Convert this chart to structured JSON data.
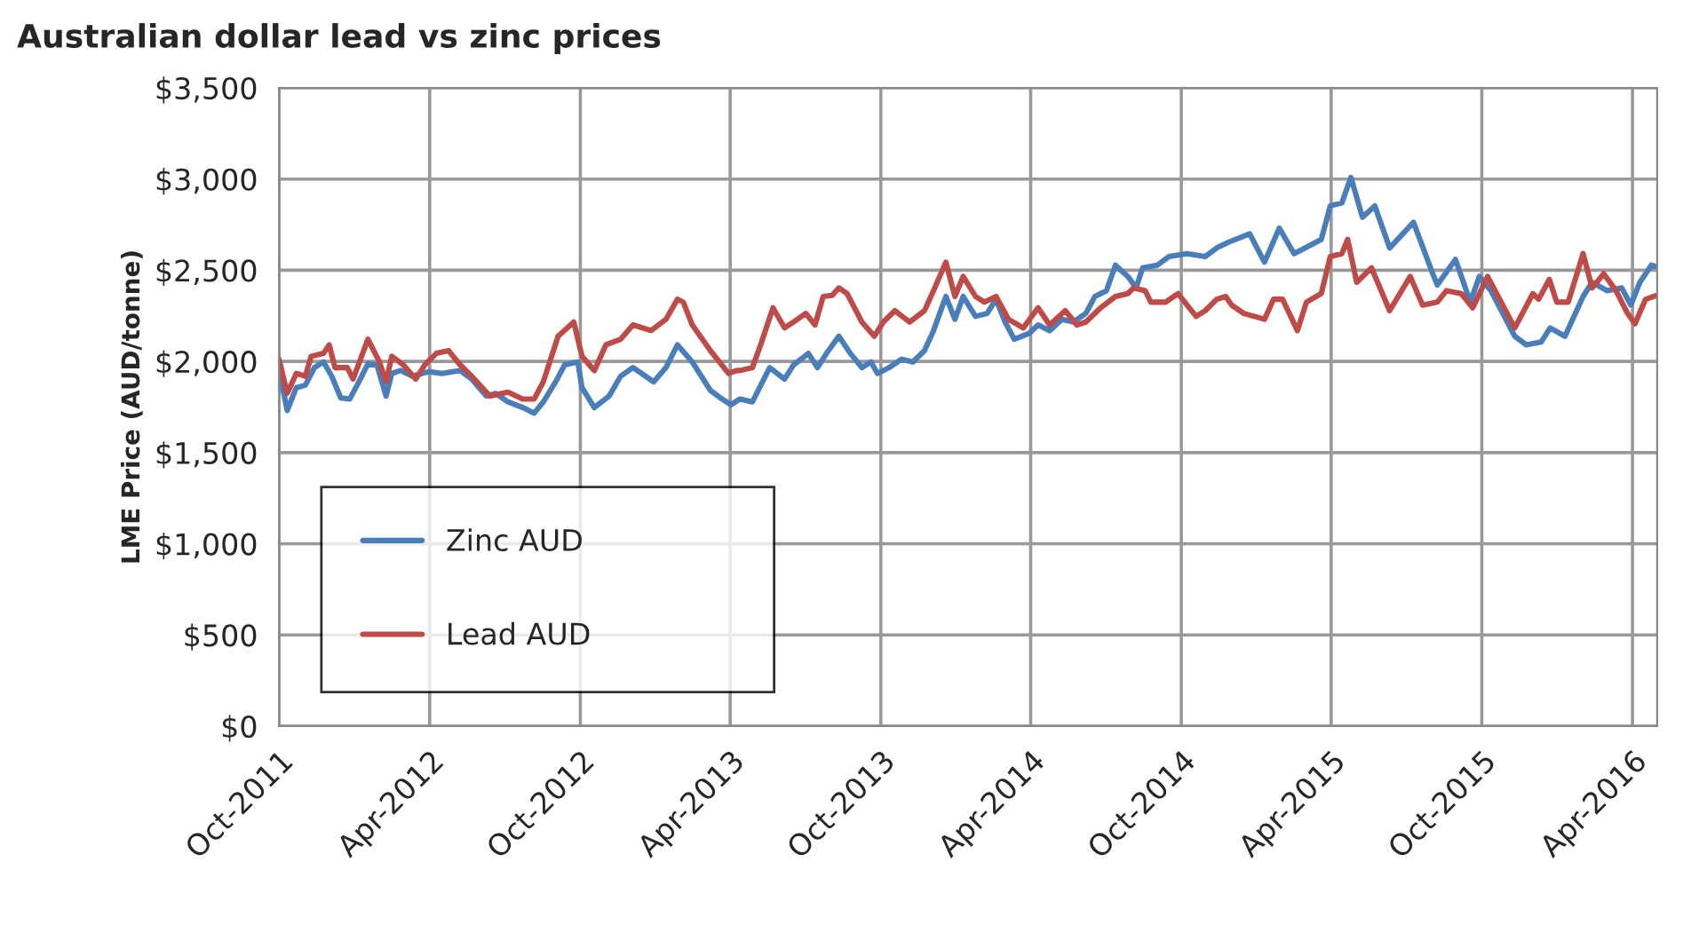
{
  "chart_data": {
    "type": "line",
    "title": "Australian dollar lead vs zinc prices",
    "ylabel": "LME Price (AUD/tonne)",
    "xlim": [
      "2011-10-01",
      "2016-05-01"
    ],
    "xticks": [
      {
        "value": "2011-10-01",
        "label": "Oct-2011"
      },
      {
        "value": "2012-04-01",
        "label": "Apr-2012"
      },
      {
        "value": "2012-10-01",
        "label": "Oct-2012"
      },
      {
        "value": "2013-04-01",
        "label": "Apr-2013"
      },
      {
        "value": "2013-10-01",
        "label": "Oct-2013"
      },
      {
        "value": "2014-04-01",
        "label": "Apr-2014"
      },
      {
        "value": "2014-10-01",
        "label": "Oct-2014"
      },
      {
        "value": "2015-04-01",
        "label": "Apr-2015"
      },
      {
        "value": "2015-10-01",
        "label": "Oct-2015"
      },
      {
        "value": "2016-04-01",
        "label": "Apr-2016"
      }
    ],
    "ylim": [
      0,
      3500
    ],
    "yticks": [
      {
        "value": 0,
        "label": "$0"
      },
      {
        "value": 500,
        "label": "$500"
      },
      {
        "value": 1000,
        "label": "$1,000"
      },
      {
        "value": 1500,
        "label": "$1,500"
      },
      {
        "value": 2000,
        "label": "$2,000"
      },
      {
        "value": 2500,
        "label": "$2,500"
      },
      {
        "value": 3000,
        "label": "$3,000"
      },
      {
        "value": 3500,
        "label": "$3,500"
      }
    ],
    "grid": true,
    "legend": "bottom left",
    "marker": "none",
    "line_style": "solid",
    "series": [
      {
        "name": "Zinc AUD",
        "color": "#4a7ebb",
        "x": [
          "2011-10-01",
          "2011-10-11",
          "2011-10-22",
          "2011-11-02",
          "2011-11-13",
          "2011-11-24",
          "2011-12-04",
          "2011-12-15",
          "2011-12-26",
          "2012-01-06",
          "2012-01-17",
          "2012-01-28",
          "2012-02-08",
          "2012-02-15",
          "2012-02-26",
          "2012-03-11",
          "2012-03-31",
          "2012-04-16",
          "2012-05-08",
          "2012-05-22",
          "2012-06-09",
          "2012-06-20",
          "2012-07-05",
          "2012-07-23",
          "2012-08-06",
          "2012-08-17",
          "2012-09-01",
          "2012-09-12",
          "2012-09-28",
          "2012-10-03",
          "2012-10-18",
          "2012-11-05",
          "2012-11-19",
          "2012-12-04",
          "2012-12-29",
          "2013-01-13",
          "2013-01-27",
          "2013-02-14",
          "2013-03-08",
          "2013-03-22",
          "2013-04-02",
          "2013-04-13",
          "2013-04-28",
          "2013-05-19",
          "2013-06-06",
          "2013-06-17",
          "2013-07-05",
          "2013-07-16",
          "2013-07-27",
          "2013-08-11",
          "2013-08-25",
          "2013-09-08",
          "2013-09-19",
          "2013-09-27",
          "2013-10-11",
          "2013-10-26",
          "2013-11-09",
          "2013-11-23",
          "2013-12-04",
          "2013-12-19",
          "2013-12-30",
          "2014-01-09",
          "2014-01-24",
          "2014-02-07",
          "2014-02-18",
          "2014-03-01",
          "2014-03-12",
          "2014-03-30",
          "2014-04-10",
          "2014-04-24",
          "2014-05-09",
          "2014-05-23",
          "2014-06-07",
          "2014-06-18",
          "2014-07-02",
          "2014-07-13",
          "2014-07-28",
          "2014-08-07",
          "2014-08-15",
          "2014-09-02",
          "2014-09-16",
          "2014-10-08",
          "2014-10-30",
          "2014-11-13",
          "2014-11-27",
          "2014-12-23",
          "2015-01-10",
          "2015-01-28",
          "2015-02-15",
          "2015-03-20",
          "2015-03-31",
          "2015-04-14",
          "2015-04-25",
          "2015-05-09",
          "2015-05-24",
          "2015-06-11",
          "2015-07-10",
          "2015-08-01",
          "2015-08-08",
          "2015-08-30",
          "2015-09-17",
          "2015-09-28",
          "2015-10-12",
          "2015-11-10",
          "2015-11-24",
          "2015-12-12",
          "2015-12-23",
          "2016-01-10",
          "2016-02-01",
          "2016-02-12",
          "2016-03-01",
          "2016-03-19",
          "2016-03-30",
          "2016-04-10",
          "2016-04-24",
          "2016-04-30"
        ],
        "values": [
          1950,
          1731,
          1856,
          1870,
          1966,
          1997,
          1919,
          1800,
          1794,
          1888,
          1987,
          1981,
          1810,
          1934,
          1950,
          1919,
          1944,
          1934,
          1950,
          1903,
          1810,
          1825,
          1778,
          1747,
          1716,
          1778,
          1888,
          1981,
          1997,
          1856,
          1747,
          1810,
          1919,
          1966,
          1888,
          1966,
          2091,
          1997,
          1841,
          1794,
          1763,
          1794,
          1778,
          1966,
          1903,
          1981,
          2044,
          1966,
          2044,
          2138,
          2044,
          1966,
          1997,
          1934,
          1966,
          2012,
          1997,
          2059,
          2169,
          2356,
          2231,
          2356,
          2247,
          2263,
          2341,
          2216,
          2122,
          2153,
          2200,
          2169,
          2231,
          2216,
          2263,
          2356,
          2388,
          2528,
          2466,
          2403,
          2513,
          2528,
          2575,
          2591,
          2575,
          2622,
          2653,
          2700,
          2544,
          2731,
          2591,
          2669,
          2853,
          2869,
          3009,
          2791,
          2853,
          2622,
          2763,
          2497,
          2419,
          2559,
          2325,
          2466,
          2388,
          2138,
          2091,
          2106,
          2184,
          2138,
          2356,
          2434,
          2388,
          2403,
          2309,
          2434,
          2528,
          2519
        ]
      },
      {
        "name": "Lead AUD",
        "color": "#be4b48",
        "x": [
          "2011-10-01",
          "2011-10-11",
          "2011-10-22",
          "2011-11-02",
          "2011-11-09",
          "2011-11-24",
          "2011-12-01",
          "2011-12-08",
          "2011-12-23",
          "2011-12-30",
          "2012-01-17",
          "2012-01-31",
          "2012-02-08",
          "2012-02-15",
          "2012-02-29",
          "2012-03-15",
          "2012-03-26",
          "2012-04-09",
          "2012-04-24",
          "2012-05-08",
          "2012-05-22",
          "2012-06-13",
          "2012-07-05",
          "2012-07-23",
          "2012-08-06",
          "2012-08-17",
          "2012-09-04",
          "2012-09-23",
          "2012-10-03",
          "2012-10-18",
          "2012-11-01",
          "2012-11-19",
          "2012-12-04",
          "2012-12-26",
          "2013-01-13",
          "2013-01-27",
          "2013-02-03",
          "2013-02-14",
          "2013-03-08",
          "2013-03-30",
          "2013-04-09",
          "2013-04-13",
          "2013-04-28",
          "2013-05-08",
          "2013-05-23",
          "2013-06-06",
          "2013-06-17",
          "2013-07-02",
          "2013-07-13",
          "2013-07-23",
          "2013-08-03",
          "2013-08-11",
          "2013-08-21",
          "2013-09-08",
          "2013-09-23",
          "2013-10-04",
          "2013-10-18",
          "2013-11-05",
          "2013-11-23",
          "2013-12-04",
          "2013-12-19",
          "2013-12-30",
          "2014-01-09",
          "2014-01-24",
          "2014-02-04",
          "2014-02-18",
          "2014-03-05",
          "2014-03-23",
          "2014-04-10",
          "2014-04-24",
          "2014-05-13",
          "2014-05-27",
          "2014-06-07",
          "2014-06-25",
          "2014-07-13",
          "2014-07-28",
          "2014-08-04",
          "2014-08-18",
          "2014-08-25",
          "2014-09-12",
          "2014-09-27",
          "2014-10-08",
          "2014-10-19",
          "2014-10-30",
          "2014-11-13",
          "2014-11-24",
          "2014-12-01",
          "2014-12-16",
          "2015-01-10",
          "2015-01-21",
          "2015-02-01",
          "2015-02-19",
          "2015-03-02",
          "2015-03-20",
          "2015-03-31",
          "2015-04-14",
          "2015-04-21",
          "2015-05-02",
          "2015-05-20",
          "2015-06-11",
          "2015-07-06",
          "2015-07-21",
          "2015-08-08",
          "2015-08-19",
          "2015-09-06",
          "2015-09-20",
          "2015-10-08",
          "2015-11-10",
          "2015-12-02",
          "2015-12-09",
          "2015-12-22",
          "2015-12-31",
          "2016-01-14",
          "2016-02-01",
          "2016-02-12",
          "2016-02-26",
          "2016-03-12",
          "2016-03-26",
          "2016-04-04",
          "2016-04-17",
          "2016-04-30"
        ],
        "values": [
          2012,
          1825,
          1934,
          1919,
          2028,
          2044,
          2091,
          1966,
          1966,
          1903,
          2122,
          1997,
          1888,
          2028,
          1981,
          1903,
          1981,
          2044,
          2059,
          1981,
          1919,
          1810,
          1831,
          1794,
          1794,
          1888,
          2138,
          2216,
          2028,
          1950,
          2091,
          2122,
          2200,
          2169,
          2231,
          2341,
          2325,
          2200,
          2059,
          1934,
          1950,
          1950,
          1966,
          2091,
          2294,
          2184,
          2216,
          2263,
          2200,
          2356,
          2362,
          2403,
          2372,
          2216,
          2138,
          2216,
          2278,
          2216,
          2278,
          2388,
          2544,
          2356,
          2466,
          2356,
          2325,
          2356,
          2231,
          2184,
          2294,
          2200,
          2278,
          2200,
          2216,
          2294,
          2356,
          2372,
          2403,
          2388,
          2325,
          2325,
          2372,
          2309,
          2247,
          2278,
          2341,
          2356,
          2309,
          2263,
          2231,
          2341,
          2341,
          2169,
          2325,
          2372,
          2575,
          2591,
          2669,
          2434,
          2513,
          2278,
          2466,
          2309,
          2325,
          2388,
          2372,
          2294,
          2466,
          2184,
          2372,
          2341,
          2450,
          2325,
          2325,
          2591,
          2403,
          2481,
          2388,
          2263,
          2206,
          2341,
          2362
        ]
      }
    ]
  }
}
